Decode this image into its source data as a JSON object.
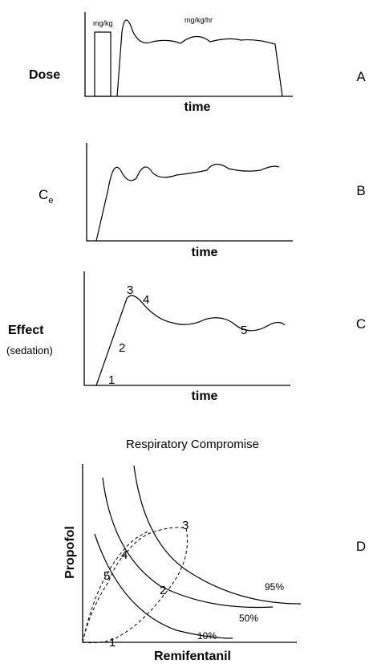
{
  "panels": [
    {
      "letter": "A",
      "y_label": "Dose",
      "x_label": "time",
      "annotations": [
        "mg/kg",
        "mg/kg/hr"
      ]
    },
    {
      "letter": "B",
      "y_label": "C",
      "y_label_sub": "e",
      "x_label": "time"
    },
    {
      "letter": "C",
      "y_label": "Effect",
      "y_label_note": "(sedation)",
      "x_label": "time",
      "points": [
        "1",
        "2",
        "3",
        "4",
        "5"
      ]
    },
    {
      "letter": "D",
      "title": "Respiratory Compromise",
      "y_label": "Propofol",
      "x_label": "Remifentanil",
      "curves": [
        "95%",
        "50%",
        "10%"
      ],
      "points": [
        "1",
        "2",
        "3",
        "4",
        "5"
      ]
    }
  ]
}
